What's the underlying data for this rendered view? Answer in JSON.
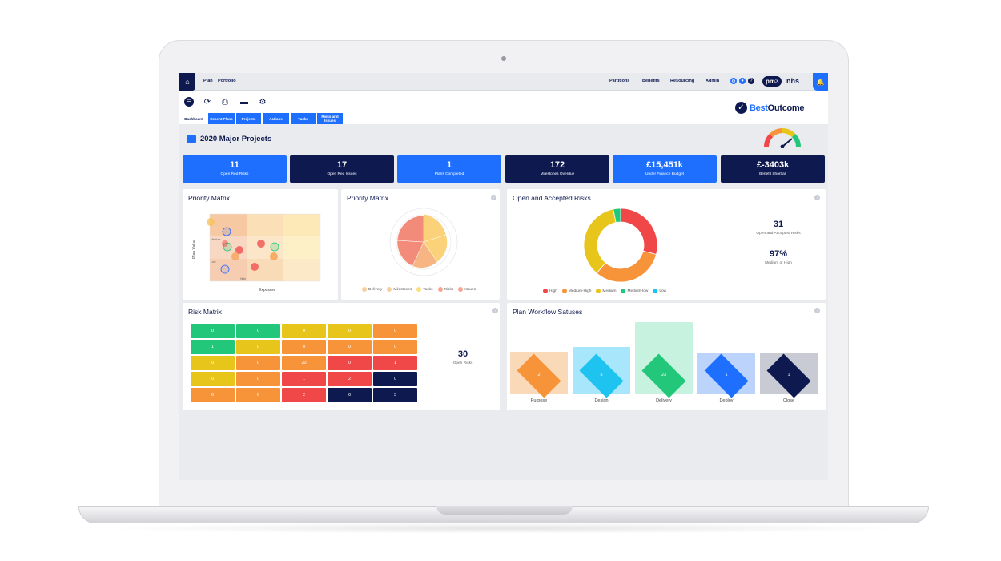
{
  "nav": {
    "links": [
      "Plan",
      "Portfolio"
    ],
    "right_links": [
      "Partitions",
      "Benefits",
      "Resourcing",
      "Admin"
    ],
    "logo_pm": "pm3",
    "logo_nhs": "nhs"
  },
  "tabs": [
    "Dashboard",
    "Recent Plans",
    "Projects",
    "Actions",
    "Tasks",
    "Risks and Issues"
  ],
  "brand": {
    "part1": "Best",
    "part2": "Outcome"
  },
  "page_title": "2020 Major Projects",
  "kpis": [
    {
      "value": "11",
      "label": "Open Red Risks",
      "color": "#1f6fff"
    },
    {
      "value": "17",
      "label": "Open Red Issues",
      "color": "#0e1a4f"
    },
    {
      "value": "1",
      "label": "Plans Completed",
      "color": "#1f6fff"
    },
    {
      "value": "172",
      "label": "Milestones Overdue",
      "color": "#0e1a4f"
    },
    {
      "value": "£15,451k",
      "label": "Under Finance Budget",
      "color": "#1f6fff"
    },
    {
      "value": "£-3403k",
      "label": "Benefit Shortfall",
      "color": "#0e1a4f"
    }
  ],
  "priority_matrix_1": {
    "title": "Priority Matrix",
    "ylabel": "Plan Value",
    "xlabel": "Exposure",
    "grid_labels": [
      "Medium",
      "Low",
      "High"
    ]
  },
  "priority_matrix_2": {
    "title": "Priority Matrix",
    "legend": [
      "Delivery",
      "Milestones",
      "Tasks",
      "Risks",
      "Issues"
    ]
  },
  "open_risks": {
    "title": "Open and Accepted Risks",
    "stat1_value": "31",
    "stat1_label": "Open and Accepted Risks",
    "stat2_value": "97%",
    "stat2_label": "Medium or High",
    "legend": [
      "High",
      "Medium-High",
      "Medium",
      "Medium-low",
      "Low"
    ]
  },
  "risk_matrix": {
    "title": "Risk Matrix",
    "stat_value": "30",
    "stat_label": "Open Risks",
    "rows": [
      [
        "0",
        "0",
        "0",
        "0",
        "0"
      ],
      [
        "1",
        "0",
        "0",
        "0",
        "0"
      ],
      [
        "0",
        "0",
        "20",
        "0",
        "1"
      ],
      [
        "0",
        "0",
        "1",
        "2",
        "0"
      ],
      [
        "0",
        "0",
        "2",
        "0",
        "3"
      ]
    ]
  },
  "workflow": {
    "title": "Plan Workflow Satuses",
    "stages": [
      {
        "label": "Purpose",
        "value": "2"
      },
      {
        "label": "Design",
        "value": "5"
      },
      {
        "label": "Delivery",
        "value": "23"
      },
      {
        "label": "Deploy",
        "value": "1"
      },
      {
        "label": "Close",
        "value": "1"
      }
    ]
  },
  "chart_data": [
    {
      "type": "pie",
      "title": "Open and Accepted Risks",
      "categories": [
        "High",
        "Medium-High",
        "Medium",
        "Medium-low",
        "Low"
      ],
      "values": [
        9,
        10,
        11,
        1,
        0
      ]
    },
    {
      "type": "pie",
      "title": "Priority Matrix",
      "categories": [
        "Delivery",
        "Milestones",
        "Tasks",
        "Risks",
        "Issues"
      ],
      "values": [
        1,
        1,
        1,
        1,
        1
      ]
    }
  ],
  "colors": {
    "navy": "#0e1a4f",
    "blue": "#1f6fff",
    "high": "#f04848",
    "medium_high": "#f7943a",
    "medium": "#e8c51a",
    "medium_low": "#22c77a",
    "low": "#1fc3f0"
  }
}
